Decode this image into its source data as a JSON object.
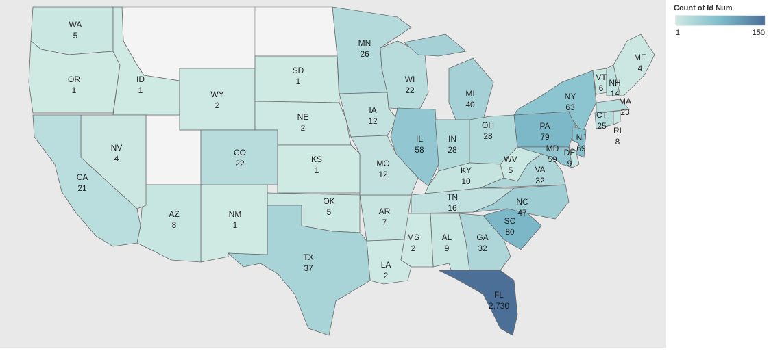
{
  "map": {
    "legend": {
      "title": "Count of Id Num",
      "min": 1,
      "max": 150
    },
    "states": [
      {
        "code": "WA",
        "value": 5
      },
      {
        "code": "OR",
        "value": 1
      },
      {
        "code": "ID",
        "value": 1
      },
      {
        "code": "WY",
        "value": 2
      },
      {
        "code": "SD",
        "value": 1
      },
      {
        "code": "NE",
        "value": 2
      },
      {
        "code": "MN",
        "value": 26
      },
      {
        "code": "WI",
        "value": 22
      },
      {
        "code": "MI",
        "value": 40
      },
      {
        "code": "IA",
        "value": 12
      },
      {
        "code": "IL",
        "value": 58
      },
      {
        "code": "IN",
        "value": 28
      },
      {
        "code": "OH",
        "value": 28
      },
      {
        "code": "PA",
        "value": 79
      },
      {
        "code": "NY",
        "value": 63
      },
      {
        "code": "VT",
        "value": 6
      },
      {
        "code": "NH",
        "value": 14
      },
      {
        "code": "ME",
        "value": 4
      },
      {
        "code": "MA",
        "value": 23
      },
      {
        "code": "CT",
        "value": 25
      },
      {
        "code": "RI",
        "value": 8
      },
      {
        "code": "NJ",
        "value": 69
      },
      {
        "code": "MD",
        "value": 59
      },
      {
        "code": "DE",
        "value": 9
      },
      {
        "code": "WV",
        "value": 5
      },
      {
        "code": "VA",
        "value": 32
      },
      {
        "code": "KY",
        "value": 10
      },
      {
        "code": "TN",
        "value": 16
      },
      {
        "code": "NC",
        "value": 47
      },
      {
        "code": "SC",
        "value": 80
      },
      {
        "code": "GA",
        "value": 32
      },
      {
        "code": "AL",
        "value": 9
      },
      {
        "code": "MS",
        "value": 2
      },
      {
        "code": "LA",
        "value": 2
      },
      {
        "code": "AR",
        "value": 7
      },
      {
        "code": "MO",
        "value": 12
      },
      {
        "code": "KS",
        "value": 1
      },
      {
        "code": "OK",
        "value": 5
      },
      {
        "code": "TX",
        "value": 37
      },
      {
        "code": "NM",
        "value": 1
      },
      {
        "code": "CO",
        "value": 22
      },
      {
        "code": "AZ",
        "value": 8
      },
      {
        "code": "NV",
        "value": 4
      },
      {
        "code": "CA",
        "value": 21
      },
      {
        "code": "FL",
        "value": 2730,
        "value_label": "2,730"
      }
    ]
  }
}
